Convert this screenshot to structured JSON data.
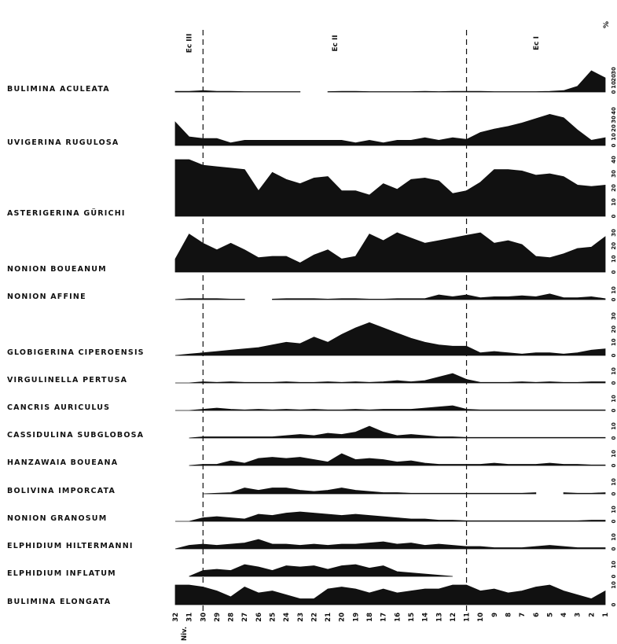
{
  "colors": {
    "fill": "#111111",
    "background": "#ffffff"
  },
  "chart_data": {
    "type": "area",
    "percent_label": "%",
    "level_axis_label": "Niv.",
    "levels": [
      32,
      31,
      30,
      29,
      28,
      27,
      26,
      25,
      24,
      23,
      22,
      21,
      20,
      19,
      18,
      17,
      16,
      15,
      14,
      13,
      12,
      11,
      10,
      9,
      8,
      7,
      6,
      5,
      4,
      3,
      2,
      1
    ],
    "zones": [
      {
        "name": "Ec III",
        "from_level": 32,
        "to_level": 30
      },
      {
        "name": "Ec II",
        "from_level": 30,
        "to_level": 11
      },
      {
        "name": "Ec I",
        "from_level": 11,
        "to_level": 1
      }
    ],
    "series": [
      {
        "name": "BULIMINA ACULEATA",
        "ylim": [
          0,
          30
        ],
        "ticks": [
          "0",
          "10",
          "20",
          "30"
        ],
        "values": [
          1,
          1,
          2,
          1,
          1,
          0.5,
          0.5,
          0.5,
          0.5,
          0.5,
          null,
          0.5,
          1,
          1,
          0.5,
          0.5,
          0.5,
          0.5,
          1,
          0.5,
          1,
          1,
          1,
          0.5,
          0.5,
          0.5,
          0.5,
          1,
          2,
          8,
          30,
          20
        ]
      },
      {
        "name": "UVIGERINA RUGULOSA",
        "ylim": [
          0,
          40
        ],
        "ticks": [
          "0",
          "10",
          "20",
          "30",
          "40"
        ],
        "values": [
          27,
          10,
          8,
          8,
          3,
          6,
          6,
          6,
          6,
          6,
          6,
          6,
          6,
          3,
          6,
          3,
          6,
          6,
          9,
          6,
          9,
          7,
          15,
          19,
          22,
          26,
          31,
          36,
          32,
          18,
          6,
          9
        ]
      },
      {
        "name": "ASTERIGERINA GÜRICHI",
        "ylim": [
          0,
          40
        ],
        "ticks": [
          "0",
          "10",
          "20",
          "30",
          "40"
        ],
        "values": [
          40,
          40,
          36,
          35,
          34,
          33,
          18,
          31,
          26,
          23,
          27,
          28,
          18,
          18,
          15,
          23,
          19,
          26,
          27,
          25,
          16,
          18,
          24,
          33,
          33,
          32,
          29,
          30,
          28,
          22,
          21,
          22
        ]
      },
      {
        "name": "NONION BOUEANUM",
        "ylim": [
          0,
          30
        ],
        "ticks": [
          "0",
          "10",
          "20",
          "30"
        ],
        "values": [
          10,
          29,
          22,
          17,
          22,
          17,
          11,
          12,
          12,
          7,
          13,
          17,
          10,
          12,
          29,
          24,
          31,
          26,
          22,
          24,
          26,
          28,
          31,
          22,
          24,
          21,
          12,
          11,
          14,
          18,
          19,
          27
        ]
      },
      {
        "name": "NONION AFFINE",
        "ylim": [
          0,
          10
        ],
        "ticks": [
          "0",
          "10"
        ],
        "values": [
          0,
          1,
          1,
          1,
          0.5,
          0.5,
          null,
          0.5,
          1,
          1,
          1,
          0.5,
          1,
          1,
          0.5,
          0.5,
          1,
          1,
          1,
          5,
          3,
          5,
          2,
          3,
          3,
          4,
          3,
          6,
          2,
          2,
          3,
          1
        ]
      },
      {
        "name": "GLOBIGERINA CIPEROENSIS",
        "ylim": [
          0,
          30
        ],
        "ticks": [
          "0",
          "10",
          "20",
          "30"
        ],
        "values": [
          0,
          1,
          2,
          3,
          4,
          5,
          6,
          8,
          10,
          9,
          14,
          10,
          16,
          21,
          25,
          21,
          17,
          13,
          10,
          8,
          7,
          7,
          2,
          3,
          2,
          1,
          2,
          2,
          1,
          2,
          4,
          5
        ]
      },
      {
        "name": "VIRGULINELLA PERTUSA",
        "ylim": [
          0,
          10
        ],
        "ticks": [
          "0",
          "10"
        ],
        "values": [
          0,
          0,
          1,
          0.5,
          1,
          0.5,
          0.5,
          0.5,
          1,
          0.5,
          0.5,
          1,
          0.5,
          1,
          0.5,
          1,
          2,
          1,
          2,
          5,
          8,
          3,
          0.5,
          0.5,
          0.5,
          1,
          0.5,
          1,
          0.5,
          0.5,
          1,
          1
        ]
      },
      {
        "name": "CANCRIS AURICULUS",
        "ylim": [
          0,
          10
        ],
        "ticks": [
          "0",
          "10"
        ],
        "values": [
          0,
          0,
          1,
          2,
          1,
          0.5,
          1,
          0.5,
          1,
          0.5,
          1,
          0.5,
          0.5,
          1,
          0.5,
          1,
          1,
          1,
          2,
          3,
          4,
          1,
          0.5,
          0.5,
          0.5,
          0.5,
          0.5,
          0.5,
          0.5,
          0.5,
          0.5,
          0.5
        ]
      },
      {
        "name": "CASSIDULINA SUBGLOBOSA",
        "ylim": [
          0,
          10
        ],
        "ticks": [
          "0",
          "10"
        ],
        "values": [
          null,
          0,
          1,
          1,
          1,
          1,
          1,
          1,
          2,
          3,
          2,
          4,
          3,
          5,
          10,
          5,
          2,
          3,
          2,
          1,
          1,
          0.5,
          0.5,
          0.5,
          0.5,
          0.5,
          0.5,
          0.5,
          0.5,
          0.5,
          0.5,
          0.5
        ]
      },
      {
        "name": "HANZAWAIA BOUEANA",
        "ylim": [
          0,
          10
        ],
        "ticks": [
          "0",
          "10"
        ],
        "values": [
          null,
          0,
          1,
          1,
          4,
          2,
          6,
          7,
          6,
          7,
          5,
          3,
          10,
          5,
          6,
          5,
          3,
          4,
          2,
          1,
          1,
          1,
          1,
          2,
          1,
          1,
          1,
          2,
          1,
          1,
          0.5,
          0.5
        ]
      },
      {
        "name": "BOLIVINA IMPORCATA",
        "ylim": [
          0,
          10
        ],
        "ticks": [
          "0",
          "10"
        ],
        "values": [
          null,
          null,
          0,
          0.5,
          1,
          5,
          3,
          5,
          5,
          3,
          2,
          3,
          5,
          3,
          2,
          1,
          1,
          0.5,
          0.5,
          0.5,
          0.5,
          0.5,
          0.5,
          0.5,
          0.5,
          0.5,
          1,
          null,
          1,
          0.5,
          0.5,
          1
        ]
      },
      {
        "name": "NONION GRANOSUM",
        "ylim": [
          0,
          10
        ],
        "ticks": [
          "0",
          "10"
        ],
        "values": [
          0,
          0,
          3,
          4,
          3,
          2,
          6,
          5,
          7,
          8,
          7,
          6,
          5,
          6,
          5,
          4,
          3,
          2,
          2,
          1,
          1,
          0.5,
          0.5,
          0.5,
          0.5,
          0.5,
          0.5,
          0.5,
          0.5,
          0.5,
          1,
          1
        ]
      },
      {
        "name": "ELPHIDIUM HILTERMANNI",
        "ylim": [
          0,
          10
        ],
        "ticks": [
          "0",
          "10"
        ],
        "values": [
          0,
          3,
          4,
          3,
          4,
          5,
          8,
          4,
          4,
          3,
          4,
          3,
          4,
          4,
          5,
          6,
          4,
          5,
          3,
          4,
          3,
          2,
          2,
          1,
          1,
          1,
          2,
          3,
          2,
          1,
          1,
          1
        ]
      },
      {
        "name": "ELPHIDIUM INFLATUM",
        "ylim": [
          0,
          10
        ],
        "ticks": [
          "0",
          "10"
        ],
        "values": [
          null,
          0,
          5,
          6,
          5,
          10,
          8,
          5,
          9,
          8,
          9,
          6,
          9,
          10,
          7,
          9,
          4,
          3,
          2,
          1,
          0,
          null,
          null,
          null,
          null,
          null,
          null,
          null,
          null,
          null,
          null,
          null
        ]
      },
      {
        "name": "BULIMINA ELONGATA",
        "ylim": [
          0,
          10
        ],
        "ticks": [
          "0",
          "10"
        ],
        "values": [
          14,
          10,
          9,
          7,
          4,
          9,
          6,
          7,
          5,
          3,
          3,
          8,
          9,
          8,
          6,
          8,
          6,
          7,
          8,
          8,
          11,
          10,
          7,
          8,
          6,
          7,
          9,
          10,
          7,
          5,
          3,
          7
        ]
      }
    ]
  }
}
